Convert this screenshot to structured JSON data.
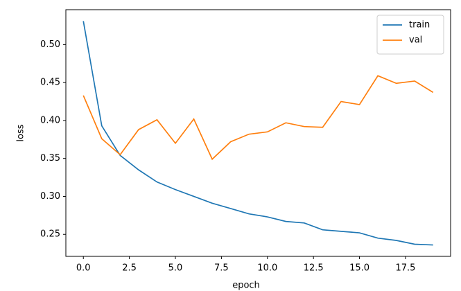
{
  "chart_data": {
    "type": "line",
    "x_label": "epoch",
    "y_label": "loss",
    "x": [
      0,
      1,
      2,
      3,
      4,
      5,
      6,
      7,
      8,
      9,
      10,
      11,
      12,
      13,
      14,
      15,
      16,
      17,
      18,
      19
    ],
    "series": [
      {
        "name": "train",
        "color": "#1f77b4",
        "values": [
          0.531,
          0.393,
          0.354,
          0.335,
          0.319,
          0.309,
          0.3,
          0.291,
          0.284,
          0.277,
          0.273,
          0.267,
          0.265,
          0.256,
          0.254,
          0.252,
          0.245,
          0.242,
          0.237,
          0.236
        ]
      },
      {
        "name": "val",
        "color": "#ff7f0e",
        "values": [
          0.433,
          0.376,
          0.355,
          0.388,
          0.401,
          0.37,
          0.402,
          0.349,
          0.372,
          0.382,
          0.385,
          0.397,
          0.392,
          0.391,
          0.425,
          0.421,
          0.459,
          0.449,
          0.452,
          0.437
        ]
      }
    ],
    "xlim": [
      -0.95,
      19.95
    ],
    "ylim": [
      0.221,
      0.546
    ],
    "xticks": [
      {
        "value": 0,
        "label": "0.0"
      },
      2.5,
      {
        "value": 5,
        "label": "5.0"
      },
      7.5,
      {
        "value": 10,
        "label": "10.0"
      },
      12.5,
      {
        "value": 15,
        "label": "15.0"
      },
      17.5
    ],
    "yticks": [
      0.25,
      {
        "value": 0.3,
        "label": "0.30"
      },
      0.35,
      {
        "value": 0.4,
        "label": "0.40"
      },
      0.45,
      {
        "value": 0.5,
        "label": "0.50"
      }
    ],
    "grid": false,
    "legend": "upper right"
  }
}
